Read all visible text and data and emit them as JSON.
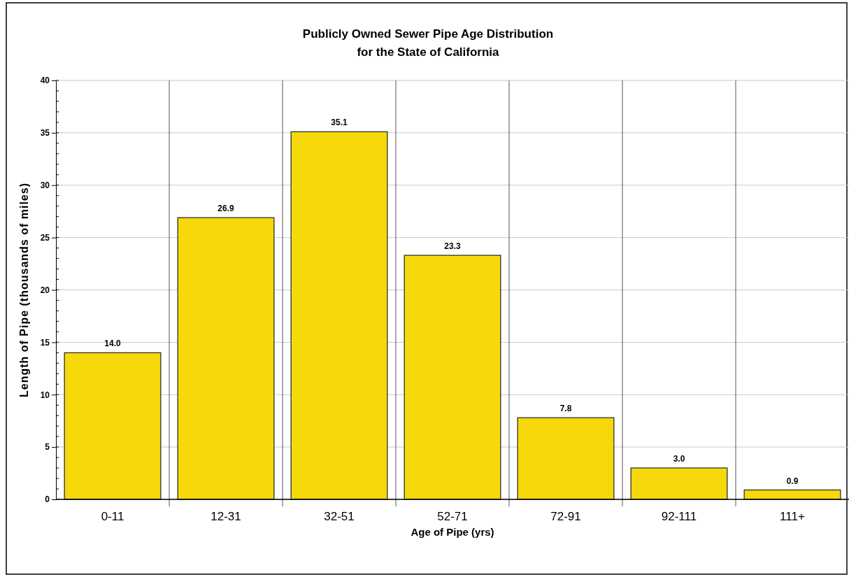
{
  "chart_data": {
    "type": "bar",
    "title": "Publicly Owned Sewer Pipe Age Distribution\nfor the State of California",
    "xlabel": "Age of Pipe (yrs)",
    "ylabel": "Length of Pipe (thousands of miles)",
    "categories": [
      "0-11",
      "12-31",
      "32-51",
      "52-71",
      "72-91",
      "92-111",
      "111+"
    ],
    "values": [
      14.0,
      26.9,
      35.1,
      23.3,
      7.8,
      3.0,
      0.9
    ],
    "value_labels": [
      "14.0",
      "26.9",
      "35.1",
      "23.3",
      "7.8",
      "3.0",
      "0.9"
    ],
    "color": "#f5d90a",
    "ylim": [
      0,
      40
    ],
    "yticks": [
      0,
      5,
      10,
      15,
      20,
      25,
      30,
      35,
      40
    ],
    "grid": true
  }
}
